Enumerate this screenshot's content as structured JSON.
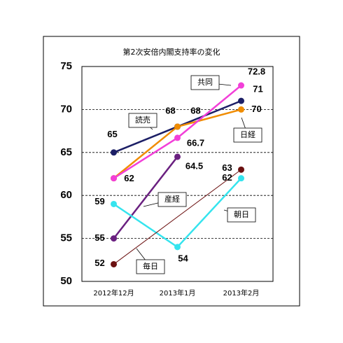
{
  "chart_data": {
    "type": "line",
    "title": "第2次安倍内閣支持率の変化",
    "categories": [
      "2012年12月",
      "2013年1月",
      "2013年2月"
    ],
    "ylim": [
      50,
      75
    ],
    "yticks": [
      50,
      55,
      60,
      65,
      70,
      75
    ],
    "grid": true,
    "span_gaps": true,
    "series": [
      {
        "name": "読売",
        "color": "#1c1f66",
        "values": [
          65,
          68,
          71
        ]
      },
      {
        "name": "日経",
        "color": "#f08c00",
        "values": [
          62,
          68,
          70
        ]
      },
      {
        "name": "共同",
        "color": "#f23fd8",
        "values": [
          62,
          66.7,
          72.8
        ]
      },
      {
        "name": "産経",
        "color": "#6a2080",
        "values": [
          55,
          64.5,
          null
        ]
      },
      {
        "name": "朝日",
        "color": "#35e4ee",
        "values": [
          59,
          54,
          62
        ]
      },
      {
        "name": "毎日",
        "color": "#6b1010",
        "values": [
          52,
          null,
          63
        ]
      }
    ]
  }
}
